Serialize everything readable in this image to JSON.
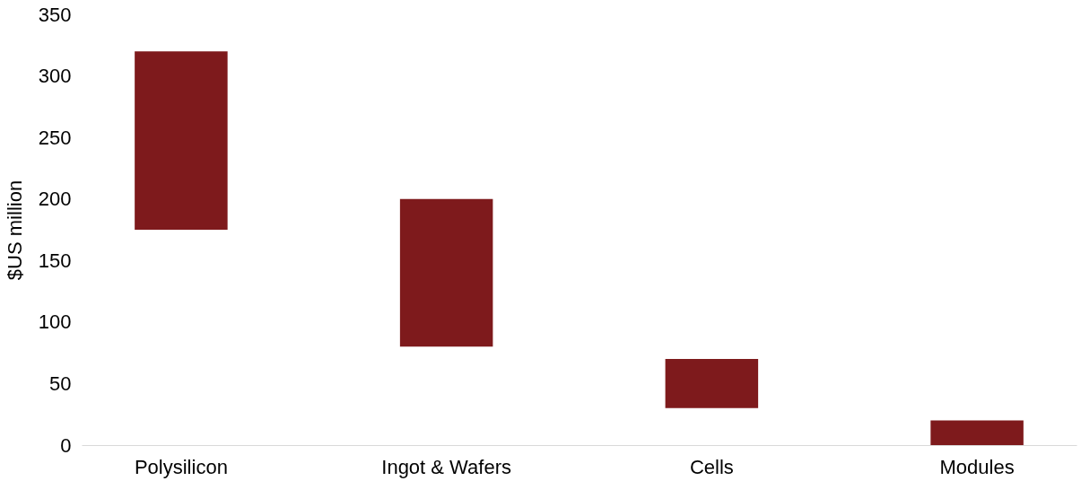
{
  "chart_data": {
    "type": "bar",
    "ylabel": "$US million",
    "categories": [
      "Polysilicon",
      "Ingot & Wafers",
      "Cells",
      "Modules"
    ],
    "values": [
      145,
      120,
      40,
      20
    ],
    "base": [
      175,
      80,
      30,
      0
    ],
    "color": "#7e1a1c",
    "ylim": [
      0,
      350
    ],
    "yticks": [
      0,
      50,
      100,
      150,
      200,
      250,
      300,
      350
    ],
    "grid": false
  }
}
